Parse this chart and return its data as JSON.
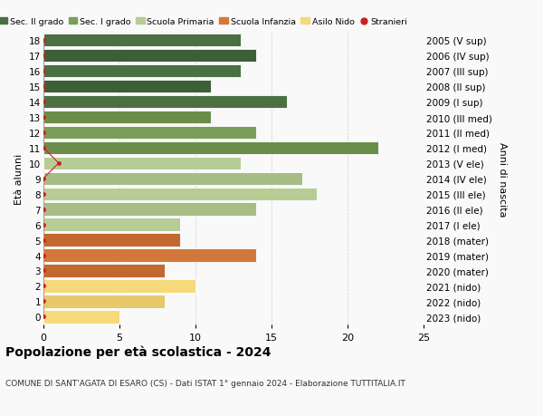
{
  "ages": [
    18,
    17,
    16,
    15,
    14,
    13,
    12,
    11,
    10,
    9,
    8,
    7,
    6,
    5,
    4,
    3,
    2,
    1,
    0
  ],
  "right_labels": [
    "2005 (V sup)",
    "2006 (IV sup)",
    "2007 (III sup)",
    "2008 (II sup)",
    "2009 (I sup)",
    "2010 (III med)",
    "2011 (II med)",
    "2012 (I med)",
    "2013 (V ele)",
    "2014 (IV ele)",
    "2015 (III ele)",
    "2016 (II ele)",
    "2017 (I ele)",
    "2018 (mater)",
    "2019 (mater)",
    "2020 (mater)",
    "2021 (nido)",
    "2022 (nido)",
    "2023 (nido)"
  ],
  "bar_values": [
    13,
    14,
    13,
    11,
    16,
    11,
    14,
    22,
    13,
    17,
    18,
    14,
    9,
    9,
    14,
    8,
    10,
    8,
    5
  ],
  "bar_colors_primary": [
    "#4a7043",
    "#4a7043",
    "#4a7043",
    "#4a7043",
    "#4a7043",
    "#7a9e5a",
    "#7a9e5a",
    "#7a9e5a",
    "#b8cc96",
    "#b8cc96",
    "#b8cc96",
    "#b8cc96",
    "#b8cc96",
    "#d2783a",
    "#d2783a",
    "#d2783a",
    "#f5d97a",
    "#f5d97a",
    "#f5d97a"
  ],
  "bar_colors_alt": [
    "#3d5e38",
    "#3d5e38",
    "#3d5e38",
    "#3d5e38",
    "#3d5e38",
    "#6a8e4a",
    "#6a8e4a",
    "#6a8e4a",
    "#a8bc86",
    "#a8bc86",
    "#a8bc86",
    "#a8bc86",
    "#a8bc86",
    "#c26830",
    "#c26830",
    "#c26830",
    "#e5c96a",
    "#e5c96a",
    "#e5c96a"
  ],
  "stranieri_dot_x": [
    0,
    0,
    0,
    0,
    0,
    0,
    0,
    0,
    1,
    0,
    0,
    0,
    0,
    0,
    0,
    0,
    0,
    0,
    0
  ],
  "legend_labels": [
    "Sec. II grado",
    "Sec. I grado",
    "Scuola Primaria",
    "Scuola Infanzia",
    "Asilo Nido",
    "Stranieri"
  ],
  "legend_colors": [
    "#4a7043",
    "#7a9e5a",
    "#b8cc96",
    "#d2783a",
    "#f5d97a",
    "#cc2222"
  ],
  "title_main": "Popolazione per età scolastica - 2024",
  "title_sub": "COMUNE DI SANT'AGATA DI ESARO (CS) - Dati ISTAT 1° gennaio 2024 - Elaborazione TUTTITALIA.IT",
  "ylabel_left": "Età alunni",
  "ylabel_right": "Anni di nascita",
  "xlim": [
    0,
    25
  ],
  "background_color": "#f9f9f9",
  "grid_color": "#cccccc",
  "bar_edge_color": "#ffffff"
}
